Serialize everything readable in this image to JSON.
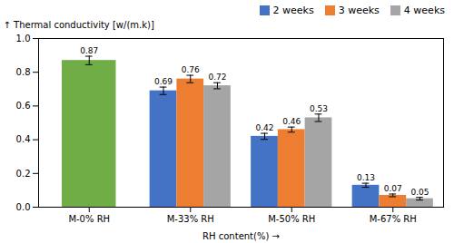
{
  "chart_data": {
    "type": "bar",
    "categories": [
      "M-0% RH",
      "M-33% RH",
      "M-50% RH",
      "M-67% RH"
    ],
    "series": [
      {
        "name": "2 weeks",
        "color": "#4472C4",
        "colors": [
          "#70AD47",
          "#4472C4",
          "#4472C4",
          "#4472C4"
        ],
        "values": [
          0.87,
          0.69,
          0.42,
          0.13
        ],
        "errors": [
          0.025,
          0.022,
          0.018,
          0.012
        ]
      },
      {
        "name": "3 weeks",
        "color": "#ED7D31",
        "values": [
          null,
          0.76,
          0.46,
          0.07
        ],
        "errors": [
          null,
          0.022,
          0.015,
          0.008
        ]
      },
      {
        "name": "4 weeks",
        "color": "#A5A5A5",
        "values": [
          null,
          0.72,
          0.53,
          0.05
        ],
        "errors": [
          null,
          0.018,
          0.022,
          0.008
        ]
      }
    ],
    "xlabel": "RH content(%)",
    "ylabel": "Thermal conductivity [w/(m.k)]",
    "ylim": [
      0,
      1.0
    ],
    "yticks": [
      {
        "value": 0,
        "label": "0.0"
      },
      0.2,
      0.4,
      0.6,
      0.8,
      {
        "value": 1.0,
        "label": "1.0"
      }
    ],
    "grid": false,
    "legend": "upper right",
    "data_labels": true
  }
}
